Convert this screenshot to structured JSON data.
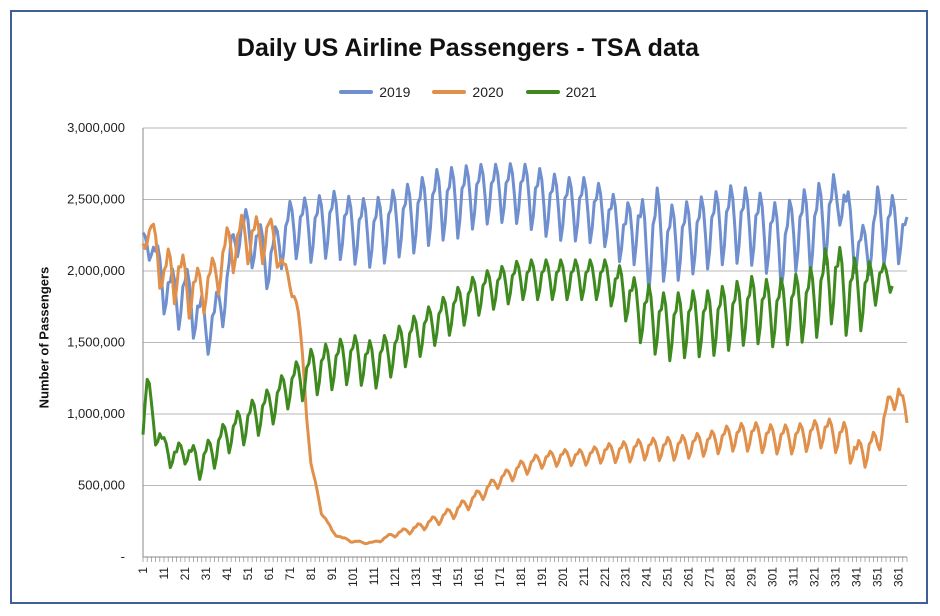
{
  "chart_data": {
    "type": "line",
    "title": "Daily US Airline Passengers - TSA data",
    "ylabel": "Number of Passengers",
    "xlabel": "",
    "x_range": [
      1,
      365
    ],
    "ylim": [
      0,
      3000000
    ],
    "y_ticks": [
      {
        "value": 0,
        "label": "-"
      },
      {
        "value": 500000,
        "label": "500,000"
      },
      {
        "value": 1000000,
        "label": "1,000,000"
      },
      {
        "value": 1500000,
        "label": "1,500,000"
      },
      {
        "value": 2000000,
        "label": "2,000,000"
      },
      {
        "value": 2500000,
        "label": "2,500,000"
      },
      {
        "value": 3000000,
        "label": "3,000,000"
      }
    ],
    "x_ticks": [
      1,
      11,
      21,
      31,
      41,
      51,
      61,
      71,
      81,
      91,
      101,
      111,
      121,
      131,
      141,
      151,
      161,
      171,
      181,
      191,
      201,
      211,
      221,
      231,
      241,
      251,
      261,
      271,
      281,
      291,
      301,
      311,
      321,
      331,
      341,
      351,
      361
    ],
    "grid": "horizontal",
    "legend": "top-center",
    "series": [
      {
        "name": "2019",
        "color": "#6f8fcf",
        "x": [
          1,
          5,
          11,
          17,
          21,
          27,
          31,
          35,
          41,
          46,
          51,
          56,
          61,
          66,
          71,
          76,
          81,
          91,
          101,
          111,
          121,
          131,
          141,
          151,
          161,
          171,
          181,
          191,
          201,
          211,
          221,
          231,
          236,
          241,
          246,
          251,
          261,
          271,
          281,
          291,
          301,
          306,
          311,
          321,
          326,
          331,
          333,
          336,
          341,
          346,
          351,
          356,
          361,
          365
        ],
        "values": [
          2200000,
          2180000,
          1900000,
          1800000,
          1850000,
          1700000,
          1600000,
          1650000,
          1900000,
          2300000,
          2250000,
          2180000,
          2050000,
          2200000,
          2300000,
          2320000,
          2300000,
          2350000,
          2300000,
          2280000,
          2350000,
          2400000,
          2480000,
          2500000,
          2550000,
          2560000,
          2560000,
          2500000,
          2450000,
          2450000,
          2400000,
          2250000,
          2350000,
          2150000,
          2300000,
          2200000,
          2250000,
          2300000,
          2350000,
          2330000,
          2250000,
          2150000,
          2300000,
          2300000,
          2380000,
          2380000,
          2600000,
          2400000,
          2150000,
          2150000,
          2350000,
          2300000,
          2300000,
          2250000
        ],
        "amplitude": [
          80000,
          120000,
          200000,
          220000,
          220000,
          220000,
          200000,
          180000,
          220000,
          200000,
          200000,
          200000,
          200000,
          200000,
          220000,
          230000,
          240000,
          250000,
          250000,
          260000,
          260000,
          270000,
          270000,
          270000,
          230000,
          220000,
          230000,
          250000,
          240000,
          240000,
          230000,
          230000,
          300000,
          330000,
          330000,
          300000,
          280000,
          280000,
          290000,
          290000,
          290000,
          300000,
          300000,
          330000,
          330000,
          350000,
          280000,
          250000,
          200000,
          200000,
          280000,
          280000,
          250000,
          150000
        ]
      },
      {
        "name": "2020",
        "color": "#e0904a",
        "x": [
          1,
          5,
          11,
          17,
          21,
          27,
          31,
          35,
          41,
          46,
          51,
          56,
          61,
          66,
          71,
          73,
          75,
          77,
          79,
          81,
          86,
          91,
          96,
          101,
          106,
          111,
          116,
          121,
          131,
          141,
          151,
          161,
          171,
          181,
          191,
          201,
          211,
          221,
          231,
          241,
          251,
          261,
          271,
          281,
          291,
          301,
          311,
          321,
          326,
          331,
          336,
          341,
          346,
          351,
          354,
          356,
          358,
          361,
          365
        ],
        "values": [
          2200000,
          2280000,
          1950000,
          2000000,
          1900000,
          1850000,
          1900000,
          1950000,
          2150000,
          2200000,
          2250000,
          2200000,
          2280000,
          2100000,
          1900000,
          1850000,
          1700000,
          1400000,
          1000000,
          650000,
          320000,
          180000,
          130000,
          110000,
          100000,
          100000,
          130000,
          160000,
          200000,
          260000,
          330000,
          430000,
          540000,
          620000,
          680000,
          700000,
          700000,
          730000,
          740000,
          760000,
          760000,
          780000,
          800000,
          840000,
          850000,
          830000,
          830000,
          860000,
          880000,
          850000,
          820000,
          720000,
          750000,
          800000,
          950000,
          1050000,
          1100000,
          1150000,
          950000
        ],
        "amplitude": [
          50000,
          100000,
          220000,
          220000,
          220000,
          200000,
          180000,
          180000,
          180000,
          200000,
          200000,
          200000,
          150000,
          100000,
          60000,
          50000,
          40000,
          30000,
          30000,
          20000,
          20000,
          15000,
          10000,
          10000,
          8000,
          8000,
          15000,
          20000,
          30000,
          40000,
          50000,
          50000,
          50000,
          60000,
          60000,
          60000,
          60000,
          70000,
          80000,
          80000,
          90000,
          90000,
          90000,
          100000,
          110000,
          110000,
          110000,
          110000,
          110000,
          120000,
          140000,
          100000,
          120000,
          100000,
          100000,
          80000,
          80000,
          100000,
          80000
        ]
      },
      {
        "name": "2021",
        "color": "#3f8a1f",
        "x": [
          1,
          3,
          5,
          11,
          17,
          21,
          27,
          31,
          35,
          41,
          51,
          61,
          71,
          81,
          91,
          101,
          111,
          121,
          131,
          141,
          151,
          161,
          171,
          181,
          191,
          201,
          211,
          221,
          231,
          236,
          241,
          251,
          261,
          271,
          281,
          291,
          301,
          311,
          321,
          326,
          331,
          336,
          341,
          346,
          351,
          356,
          358
        ],
        "values": [
          900000,
          1200000,
          1000000,
          750000,
          700000,
          750000,
          650000,
          700000,
          750000,
          850000,
          950000,
          1050000,
          1200000,
          1300000,
          1350000,
          1400000,
          1350000,
          1450000,
          1550000,
          1650000,
          1750000,
          1850000,
          1900000,
          1950000,
          1950000,
          1950000,
          1950000,
          1950000,
          1850000,
          1750000,
          1700000,
          1620000,
          1650000,
          1650000,
          1700000,
          1750000,
          1720000,
          1750000,
          1800000,
          1900000,
          1950000,
          1850000,
          1850000,
          1850000,
          1950000,
          1950000,
          1950000
        ],
        "amplitude": [
          80000,
          120000,
          150000,
          100000,
          100000,
          100000,
          120000,
          120000,
          130000,
          130000,
          150000,
          150000,
          150000,
          180000,
          180000,
          180000,
          180000,
          170000,
          170000,
          160000,
          160000,
          160000,
          150000,
          150000,
          150000,
          150000,
          150000,
          150000,
          200000,
          220000,
          250000,
          250000,
          250000,
          250000,
          250000,
          250000,
          250000,
          260000,
          280000,
          300000,
          300000,
          300000,
          280000,
          250000,
          150000,
          100000,
          100000
        ]
      }
    ]
  }
}
